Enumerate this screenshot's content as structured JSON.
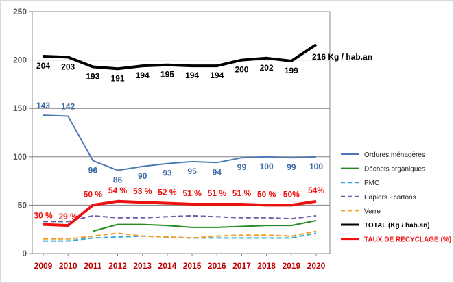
{
  "chart_data": {
    "type": "line",
    "title": "",
    "xlabel": "",
    "ylabel": "",
    "ylim": [
      0,
      250
    ],
    "yticks": [
      "0",
      "50",
      "100",
      "150",
      "200",
      "250"
    ],
    "grid": true,
    "legend_position": "right",
    "categories": [
      "2009",
      "2010",
      "2011",
      "2012",
      "2013",
      "2014",
      "2015",
      "2016",
      "2017",
      "2018",
      "2019",
      "2020"
    ],
    "series": [
      {
        "name": "Ordures ménagères",
        "color": "#4a7ab5",
        "dash": "solid",
        "values": [
          143,
          142,
          96,
          86,
          90,
          93,
          95,
          94,
          99,
          100,
          99,
          100
        ],
        "labels": [
          "143",
          "142",
          "96",
          "86",
          "90",
          "93",
          "95",
          "94",
          "99",
          "100",
          "99",
          "100"
        ],
        "label_color": "#3a6aa5"
      },
      {
        "name": "Déchets organiques",
        "color": "#228b22",
        "dash": "solid",
        "values": [
          null,
          null,
          23,
          30,
          30,
          29,
          27,
          27,
          28,
          29,
          29,
          34
        ],
        "labels": []
      },
      {
        "name": "PMC",
        "color": "#2aa7d8",
        "dash": "dashed",
        "values": [
          13,
          13,
          16,
          17,
          18,
          17,
          16,
          16,
          16,
          16,
          16,
          21
        ],
        "labels": []
      },
      {
        "name": "Papiers - cartons",
        "color": "#6e5aa7",
        "dash": "dashed",
        "values": [
          33,
          33,
          39,
          37,
          37,
          38,
          39,
          38,
          37,
          37,
          36,
          39
        ],
        "labels": []
      },
      {
        "name": "Verre",
        "color": "#f79a1d",
        "dash": "dashed",
        "values": [
          15,
          15,
          18,
          21,
          18,
          17,
          16,
          18,
          19,
          19,
          18,
          23
        ],
        "labels": []
      },
      {
        "name": "TOTAL  (Kg / hab.an)",
        "color": "#000000",
        "dash": "solid",
        "bold": true,
        "values": [
          204,
          203,
          193,
          191,
          194,
          195,
          194,
          194,
          200,
          202,
          199,
          216
        ],
        "labels": [
          "204",
          "203",
          "193",
          "191",
          "194",
          "195",
          "194",
          "194",
          "200",
          "202",
          "199",
          "216 Kg / hab.an"
        ],
        "label_color": "#000000"
      },
      {
        "name": "TAUX DE RECYCLAGE (%)",
        "color": "#ee1111",
        "dash": "solid",
        "bold": true,
        "values": [
          30,
          29,
          50,
          54,
          53,
          52,
          51,
          51,
          51,
          50,
          50,
          54
        ],
        "labels": [
          "30 %",
          "29 %",
          "50 %",
          "54 %",
          "53 %",
          "52 %",
          "51 %",
          "51 %",
          "51 %",
          "50 %",
          "50%",
          "54%"
        ],
        "label_color": "#ee1111"
      }
    ]
  }
}
